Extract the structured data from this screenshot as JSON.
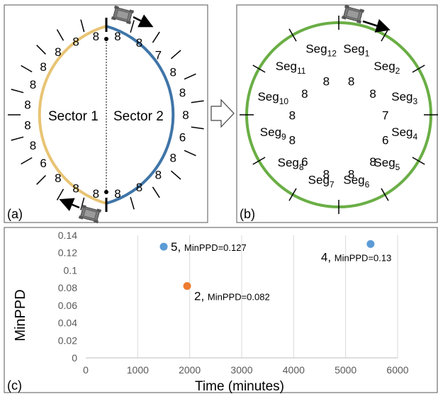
{
  "panel_a": {
    "label": "(a)",
    "sector1_label": "Sector 1",
    "sector2_label": "Sector 2",
    "sector1_color": "#E8C474",
    "sector2_color": "#3F75A8",
    "sector1_values": [
      "8",
      "8",
      "8",
      "8",
      "8",
      "8",
      "8",
      "8",
      "6",
      "8",
      "8",
      "8"
    ],
    "sector2_values": [
      "8",
      "8",
      "7",
      "8",
      "8",
      "8",
      "6",
      "8",
      "8",
      "8",
      "8"
    ]
  },
  "panel_b": {
    "label": "(b)",
    "ring_color": "#6AAE45",
    "segments": [
      {
        "base": "Seg",
        "sub": "1",
        "value": "8"
      },
      {
        "base": "Seg",
        "sub": "2",
        "value": "8"
      },
      {
        "base": "Seg",
        "sub": "3",
        "value": "7"
      },
      {
        "base": "Seg",
        "sub": "4",
        "value": "6"
      },
      {
        "base": "Seg",
        "sub": "5",
        "value": "8"
      },
      {
        "base": "Seg",
        "sub": "6",
        "value": "8"
      },
      {
        "base": "Seg",
        "sub": "7",
        "value": "8"
      },
      {
        "base": "Seg",
        "sub": "8",
        "value": "6"
      },
      {
        "base": "Seg",
        "sub": "9",
        "value": "8"
      },
      {
        "base": "Seg",
        "sub": "10",
        "value": "8"
      },
      {
        "base": "Seg",
        "sub": "11",
        "value": "8"
      },
      {
        "base": "Seg",
        "sub": "12",
        "value": "8"
      }
    ]
  },
  "panel_c": {
    "label": "(c)",
    "chart_data": {
      "type": "scatter",
      "xlabel": "Time (minutes)",
      "ylabel": "MinPPD",
      "xlim": [
        0,
        6000
      ],
      "ylim": [
        0,
        0.14
      ],
      "xticks": [
        "0",
        "1000",
        "2000",
        "3000",
        "4000",
        "5000",
        "6000"
      ],
      "yticks": [
        "0",
        "0.02",
        "0.04",
        "0.06",
        "0.08",
        "0.1",
        "0.12",
        "0.14"
      ],
      "grid": "vertical",
      "points": [
        {
          "x": 1500,
          "y": 0.127,
          "color": "#5B9BD5",
          "label_num": "5,",
          "label_text": "MinPPD=0.127"
        },
        {
          "x": 1950,
          "y": 0.082,
          "color": "#ED7D31",
          "label_num": "2,",
          "label_text": "MinPPD=0.082"
        },
        {
          "x": 5480,
          "y": 0.13,
          "color": "#5B9BD5",
          "label_num": "4,",
          "label_text": "MinPPD=0.13"
        }
      ]
    }
  }
}
